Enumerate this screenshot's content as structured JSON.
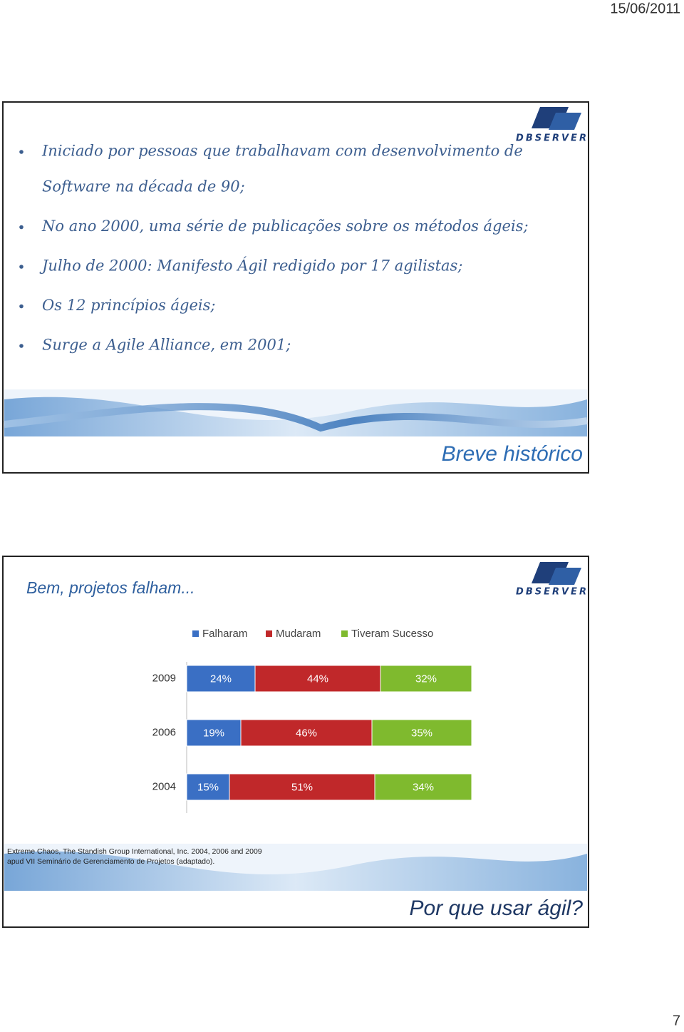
{
  "date": "15/06/2011",
  "page_number": "7",
  "logo_text": "DBSERVER",
  "slide1": {
    "bullets": [
      [
        "Iniciado por pessoas que trabalhavam com desenvolvimento de",
        "Software na década de 90;"
      ],
      [
        "No ano 2000, uma série de publicações sobre os métodos ágeis;"
      ],
      [
        "Julho de 2000: Manifesto Ágil redigido por 17 agilistas;"
      ],
      [
        "Os 12 princípios ágeis;"
      ],
      [
        "Surge a Agile Alliance, em 2001;"
      ]
    ],
    "title": "Breve histórico"
  },
  "slide2": {
    "title": "Bem, projetos falham...",
    "source": [
      "Extreme Chaos, The Standish Group International, Inc. 2004, 2006 and 2009",
      "apud VII Seminário de Gerenciamento de Projetos (adaptado)."
    ],
    "footer": "Por que usar ágil?"
  },
  "chart_data": {
    "type": "stacked-bar-horizontal",
    "categories": [
      "2009",
      "2006",
      "2004"
    ],
    "xlim": [
      0,
      100
    ],
    "legend": "top",
    "series": [
      {
        "name": "Falharam",
        "color": "#3a6fc4",
        "values": [
          24,
          19,
          15
        ],
        "value_labels": [
          "24%",
          "19%",
          "15%"
        ]
      },
      {
        "name": "Mudaram",
        "color": "#c0282a",
        "values": [
          44,
          46,
          51
        ],
        "value_labels": [
          "44%",
          "46%",
          "51%"
        ]
      },
      {
        "name": "Tiveram Sucesso",
        "color": "#7fba2e",
        "values": [
          32,
          35,
          34
        ],
        "value_labels": [
          "32%",
          "35%",
          "34%"
        ]
      }
    ]
  }
}
